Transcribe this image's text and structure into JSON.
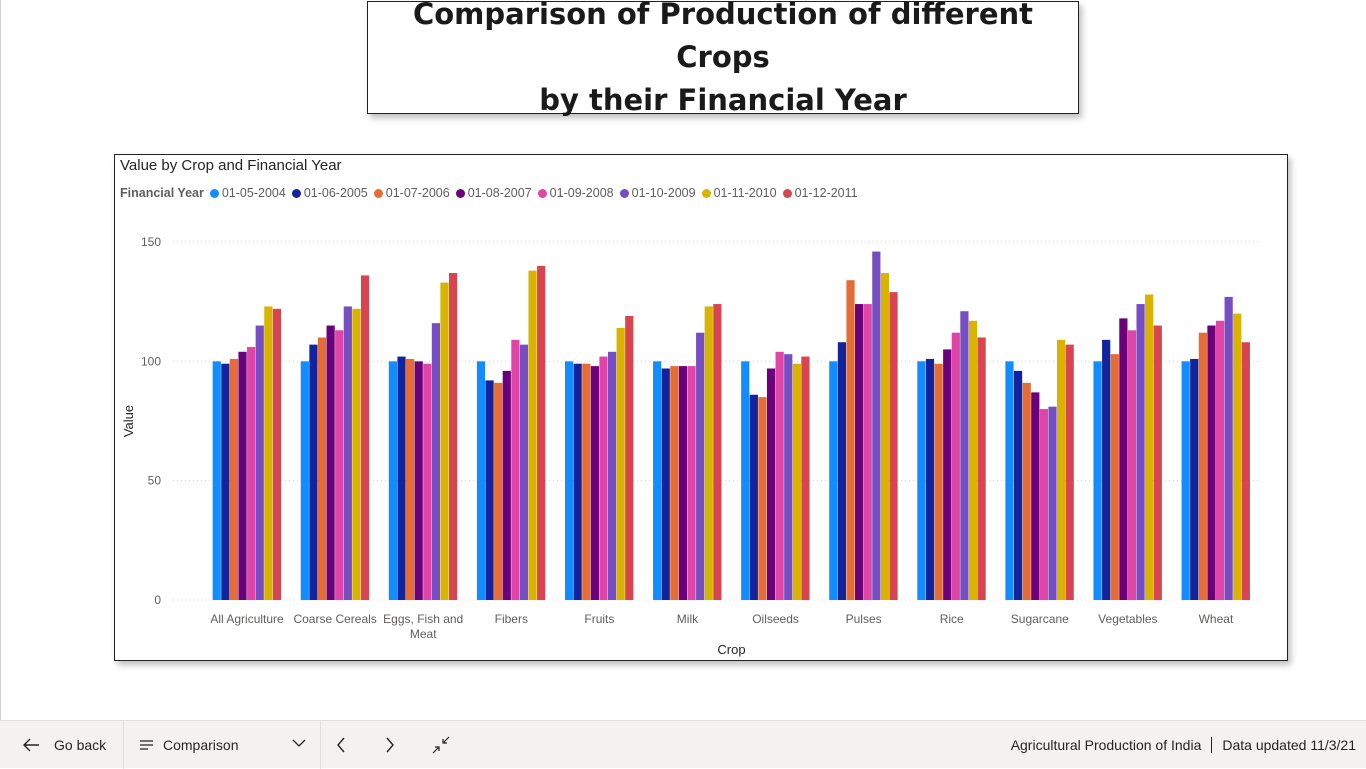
{
  "report": {
    "title_line1": "Comparison of Production of different Crops",
    "title_line2": "by their Financial Year"
  },
  "footer": {
    "go_back_label": "Go back",
    "page_name": "Comparison",
    "report_name": "Agricultural Production of India",
    "data_updated": "Data updated 11/3/21"
  },
  "icons": {
    "back": "arrow-left-icon",
    "page_menu": "list-icon",
    "dropdown": "chevron-down-icon",
    "prev": "chevron-left-icon",
    "next": "chevron-right-icon",
    "fit": "collapse-icon"
  },
  "chart_data": {
    "type": "bar",
    "title": "Value by Crop and Financial Year",
    "legend_title": "Financial Year",
    "xlabel": "Crop",
    "ylabel": "Value",
    "ylim": [
      0,
      150
    ],
    "yticks": [
      0,
      50,
      100,
      150
    ],
    "grid": true,
    "legend_position": "top-left",
    "categories": [
      "All Agriculture",
      "Coarse Cereals",
      "Eggs, Fish and Meat",
      "Fibers",
      "Fruits",
      "Milk",
      "Oilseeds",
      "Pulses",
      "Rice",
      "Sugarcane",
      "Vegetables",
      "Wheat"
    ],
    "series": [
      {
        "name": "01-05-2004",
        "color": "#118dff",
        "values": [
          100,
          100,
          100,
          100,
          100,
          100,
          100,
          100,
          100,
          100,
          100,
          100
        ]
      },
      {
        "name": "01-06-2005",
        "color": "#12239e",
        "values": [
          99,
          107,
          102,
          92,
          99,
          97,
          86,
          108,
          101,
          96,
          109,
          101
        ]
      },
      {
        "name": "01-07-2006",
        "color": "#e66c37",
        "values": [
          101,
          110,
          101,
          91,
          99,
          98,
          85,
          134,
          99,
          91,
          103,
          112
        ]
      },
      {
        "name": "01-08-2007",
        "color": "#6b007b",
        "values": [
          104,
          115,
          100,
          96,
          98,
          98,
          97,
          124,
          105,
          87,
          118,
          115
        ]
      },
      {
        "name": "01-09-2008",
        "color": "#e044a7",
        "values": [
          106,
          113,
          99,
          109,
          102,
          98,
          104,
          124,
          112,
          80,
          113,
          117
        ]
      },
      {
        "name": "01-10-2009",
        "color": "#744ec2",
        "values": [
          115,
          123,
          116,
          107,
          104,
          112,
          103,
          146,
          121,
          81,
          124,
          127
        ]
      },
      {
        "name": "01-11-2010",
        "color": "#d9b300",
        "values": [
          123,
          122,
          133,
          138,
          114,
          123,
          99,
          137,
          117,
          109,
          128,
          120
        ]
      },
      {
        "name": "01-12-2011",
        "color": "#d64550",
        "values": [
          122,
          136,
          137,
          140,
          119,
          124,
          102,
          129,
          110,
          107,
          115,
          108
        ]
      }
    ]
  }
}
